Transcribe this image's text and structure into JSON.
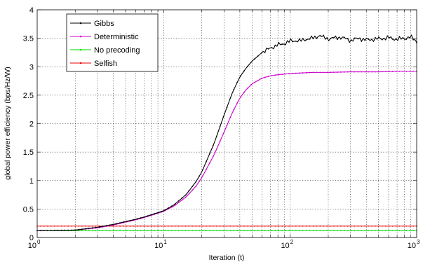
{
  "chart_data": {
    "type": "line",
    "xlabel": "Iteration (t)",
    "ylabel": "global power efficiency (bps/Hz/W)",
    "xscale": "log",
    "xlim": [
      1,
      1000
    ],
    "ylim": [
      0,
      4
    ],
    "grid": true,
    "legend_position": "top-left",
    "x_ticks": [
      {
        "value": 1,
        "base": "10",
        "exp": "0"
      },
      {
        "value": 10,
        "base": "10",
        "exp": "1"
      },
      {
        "value": 100,
        "base": "10",
        "exp": "2"
      },
      {
        "value": 1000,
        "base": "10",
        "exp": "3"
      }
    ],
    "y_ticks": [
      {
        "value": 0,
        "label": "0"
      },
      {
        "value": 0.5,
        "label": "0.5"
      },
      {
        "value": 1,
        "label": "1"
      },
      {
        "value": 1.5,
        "label": "1.5"
      },
      {
        "value": 2,
        "label": "2"
      },
      {
        "value": 2.5,
        "label": "2.5"
      },
      {
        "value": 3,
        "label": "3"
      },
      {
        "value": 3.5,
        "label": "3.5"
      },
      {
        "value": 4,
        "label": "4"
      }
    ],
    "series": [
      {
        "name": "Gibbs",
        "color": "#000000",
        "x": [
          1,
          2,
          3,
          4,
          5,
          6,
          7,
          8,
          10,
          12,
          15,
          18,
          20,
          25,
          30,
          35,
          40,
          45,
          50,
          60,
          70,
          80,
          90,
          100,
          110,
          120,
          130,
          150,
          170,
          180,
          200,
          250,
          300,
          350,
          400,
          500,
          600,
          700,
          800,
          900,
          1000
        ],
        "y": [
          0.12,
          0.13,
          0.18,
          0.23,
          0.28,
          0.32,
          0.36,
          0.4,
          0.47,
          0.57,
          0.75,
          0.98,
          1.15,
          1.65,
          2.15,
          2.55,
          2.82,
          2.98,
          3.1,
          3.25,
          3.33,
          3.38,
          3.41,
          3.45,
          3.46,
          3.45,
          3.48,
          3.5,
          3.55,
          3.52,
          3.49,
          3.52,
          3.46,
          3.5,
          3.47,
          3.49,
          3.51,
          3.48,
          3.5,
          3.52,
          3.45
        ]
      },
      {
        "name": "Deterministic",
        "color": "#cc00cc",
        "x": [
          1,
          2,
          3,
          4,
          5,
          6,
          7,
          8,
          10,
          12,
          15,
          18,
          20,
          25,
          30,
          35,
          40,
          45,
          50,
          60,
          70,
          80,
          100,
          150,
          200,
          300,
          400,
          500,
          700,
          1000
        ],
        "y": [
          0.12,
          0.13,
          0.17,
          0.22,
          0.27,
          0.31,
          0.35,
          0.39,
          0.46,
          0.55,
          0.71,
          0.9,
          1.05,
          1.45,
          1.85,
          2.2,
          2.45,
          2.6,
          2.7,
          2.8,
          2.84,
          2.86,
          2.88,
          2.9,
          2.9,
          2.91,
          2.91,
          2.91,
          2.92,
          2.92
        ]
      },
      {
        "name": "No precoding",
        "color": "#00dd00",
        "x": [
          1,
          1000
        ],
        "y": [
          0.12,
          0.12
        ]
      },
      {
        "name": "Selfish",
        "color": "#ee0000",
        "x": [
          1,
          1000
        ],
        "y": [
          0.2,
          0.2
        ]
      }
    ]
  }
}
